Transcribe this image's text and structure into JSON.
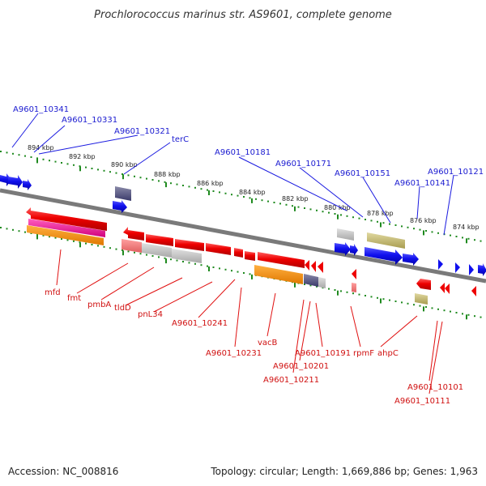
{
  "title": "Prochlorococcus marinus str. AS9601, complete genome",
  "footer": {
    "accession": "Accession: NC_008816",
    "topology": "Topology: circular; Length: 1,669,886 bp; Genes: 1,963"
  },
  "colors": {
    "forward": "#1a1aee",
    "reverse": "#ee1111",
    "backbone": "#888888",
    "ticks": "#1f8a1f"
  },
  "scale": {
    "ticks": [
      {
        "label": "894 kbp"
      },
      {
        "label": "892 kbp"
      },
      {
        "label": "890 kbp"
      },
      {
        "label": "888 kbp"
      },
      {
        "label": "886 kbp"
      },
      {
        "label": "884 kbp"
      },
      {
        "label": "882 kbp"
      },
      {
        "label": "880 kbp"
      },
      {
        "label": "878 kbp"
      },
      {
        "label": "876 kbp"
      },
      {
        "label": "874 kbp"
      }
    ]
  },
  "labels_forward": [
    {
      "text": "A9601_10341"
    },
    {
      "text": "A9601_10331"
    },
    {
      "text": "A9601_10321"
    },
    {
      "text": "terC"
    },
    {
      "text": "A9601_10181"
    },
    {
      "text": "A9601_10171"
    },
    {
      "text": "A9601_10151"
    },
    {
      "text": "A9601_10141"
    },
    {
      "text": "A9601_10121"
    }
  ],
  "labels_reverse": [
    {
      "text": "mfd"
    },
    {
      "text": "fmt"
    },
    {
      "text": "pmbA"
    },
    {
      "text": "tldD"
    },
    {
      "text": "pnL34"
    },
    {
      "text": "A9601_10241"
    },
    {
      "text": "A9601_10231"
    },
    {
      "text": "vacB"
    },
    {
      "text": "A9601_10211"
    },
    {
      "text": "A9601_10201"
    },
    {
      "text": "A9601_10191"
    },
    {
      "text": "rpmF"
    },
    {
      "text": "ahpC"
    },
    {
      "text": "A9601_10101"
    },
    {
      "text": "A9601_10111"
    }
  ]
}
